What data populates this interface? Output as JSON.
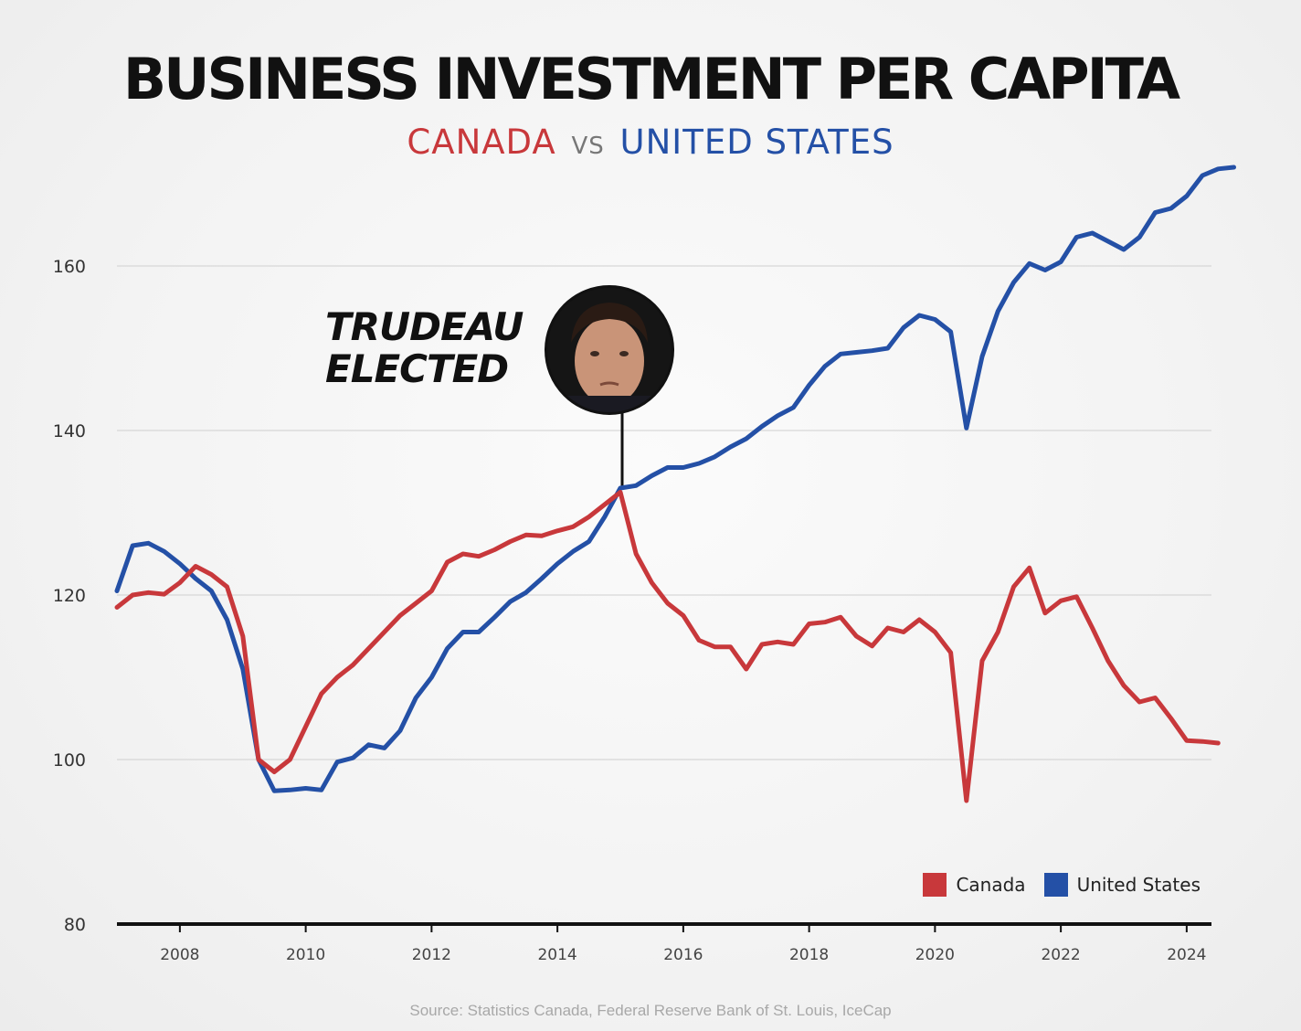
{
  "header": {
    "title": "BUSINESS INVESTMENT PER CAPITA",
    "subtitle_canada": "CANADA",
    "subtitle_vs": "VS",
    "subtitle_us": "UNITED STATES"
  },
  "annotation": {
    "line1": "TRUDEAU",
    "line2": "ELECTED",
    "x_year": 2015.0
  },
  "source": "Source: Statistics Canada, Federal Reserve Bank of St. Louis, IceCap",
  "colors": {
    "canada": "#c8383b",
    "united_states": "#2450a6"
  },
  "chart_data": {
    "type": "line",
    "title": "BUSINESS INVESTMENT PER CAPITA",
    "xlabel": "",
    "ylabel": "",
    "xlim": [
      2007.0,
      2024.9
    ],
    "ylim": [
      80,
      170
    ],
    "yticks": [
      80,
      100,
      120,
      140,
      160
    ],
    "xticks": [
      2008,
      2010,
      2012,
      2014,
      2016,
      2018,
      2020,
      2022,
      2024
    ],
    "grid": true,
    "legend_position": "bottom-right",
    "series": [
      {
        "name": "Canada",
        "color": "#c8383b",
        "points": [
          [
            2007.0,
            118.5
          ],
          [
            2007.25,
            120.0
          ],
          [
            2007.5,
            120.3
          ],
          [
            2007.75,
            120.1
          ],
          [
            2008.0,
            121.5
          ],
          [
            2008.25,
            123.5
          ],
          [
            2008.5,
            122.5
          ],
          [
            2008.75,
            121.0
          ],
          [
            2009.0,
            115.0
          ],
          [
            2009.25,
            100.0
          ],
          [
            2009.5,
            98.5
          ],
          [
            2009.75,
            100.0
          ],
          [
            2010.0,
            104.0
          ],
          [
            2010.25,
            108.0
          ],
          [
            2010.5,
            110.0
          ],
          [
            2010.75,
            111.5
          ],
          [
            2011.0,
            113.5
          ],
          [
            2011.25,
            115.5
          ],
          [
            2011.5,
            117.5
          ],
          [
            2011.75,
            119.0
          ],
          [
            2012.0,
            120.5
          ],
          [
            2012.25,
            124.0
          ],
          [
            2012.5,
            125.0
          ],
          [
            2012.75,
            124.7
          ],
          [
            2013.0,
            125.5
          ],
          [
            2013.25,
            126.5
          ],
          [
            2013.5,
            127.3
          ],
          [
            2013.75,
            127.2
          ],
          [
            2014.0,
            127.8
          ],
          [
            2014.25,
            128.3
          ],
          [
            2014.5,
            129.5
          ],
          [
            2014.75,
            131.0
          ],
          [
            2015.0,
            132.5
          ],
          [
            2015.25,
            125.0
          ],
          [
            2015.5,
            121.5
          ],
          [
            2015.75,
            119.0
          ],
          [
            2016.0,
            117.5
          ],
          [
            2016.25,
            114.5
          ],
          [
            2016.5,
            113.7
          ],
          [
            2016.75,
            113.7
          ],
          [
            2017.0,
            111.0
          ],
          [
            2017.25,
            114.0
          ],
          [
            2017.5,
            114.3
          ],
          [
            2017.75,
            114.0
          ],
          [
            2018.0,
            116.5
          ],
          [
            2018.25,
            116.7
          ],
          [
            2018.5,
            117.3
          ],
          [
            2018.75,
            115.0
          ],
          [
            2019.0,
            113.8
          ],
          [
            2019.25,
            116.0
          ],
          [
            2019.5,
            115.5
          ],
          [
            2019.75,
            117.0
          ],
          [
            2020.0,
            115.5
          ],
          [
            2020.25,
            113.0
          ],
          [
            2020.5,
            95.0
          ],
          [
            2020.75,
            112.0
          ],
          [
            2021.0,
            115.5
          ],
          [
            2021.25,
            121.0
          ],
          [
            2021.5,
            123.3
          ],
          [
            2021.75,
            117.8
          ],
          [
            2022.0,
            119.3
          ],
          [
            2022.25,
            119.8
          ],
          [
            2022.5,
            116.0
          ],
          [
            2022.75,
            112.0
          ],
          [
            2023.0,
            109.0
          ],
          [
            2023.25,
            107.0
          ],
          [
            2023.5,
            107.5
          ],
          [
            2023.75,
            105.0
          ],
          [
            2024.0,
            102.3
          ],
          [
            2024.25,
            102.2
          ],
          [
            2024.5,
            102.0
          ]
        ]
      },
      {
        "name": "United States",
        "color": "#2450a6",
        "points": [
          [
            2007.0,
            120.5
          ],
          [
            2007.25,
            126.0
          ],
          [
            2007.5,
            126.3
          ],
          [
            2007.75,
            125.3
          ],
          [
            2008.0,
            123.8
          ],
          [
            2008.25,
            122.0
          ],
          [
            2008.5,
            120.5
          ],
          [
            2008.75,
            117.0
          ],
          [
            2009.0,
            111.0
          ],
          [
            2009.25,
            100.0
          ],
          [
            2009.5,
            96.2
          ],
          [
            2009.75,
            96.3
          ],
          [
            2010.0,
            96.5
          ],
          [
            2010.25,
            96.3
          ],
          [
            2010.5,
            99.7
          ],
          [
            2010.75,
            100.2
          ],
          [
            2011.0,
            101.8
          ],
          [
            2011.25,
            101.4
          ],
          [
            2011.5,
            103.5
          ],
          [
            2011.75,
            107.5
          ],
          [
            2012.0,
            110.0
          ],
          [
            2012.25,
            113.5
          ],
          [
            2012.5,
            115.5
          ],
          [
            2012.75,
            115.5
          ],
          [
            2013.0,
            117.3
          ],
          [
            2013.25,
            119.2
          ],
          [
            2013.5,
            120.3
          ],
          [
            2013.75,
            122.0
          ],
          [
            2014.0,
            123.8
          ],
          [
            2014.25,
            125.3
          ],
          [
            2014.5,
            126.5
          ],
          [
            2014.75,
            129.5
          ],
          [
            2015.0,
            133.0
          ],
          [
            2015.25,
            133.3
          ],
          [
            2015.5,
            134.5
          ],
          [
            2015.75,
            135.5
          ],
          [
            2016.0,
            135.5
          ],
          [
            2016.25,
            136.0
          ],
          [
            2016.5,
            136.8
          ],
          [
            2016.75,
            138.0
          ],
          [
            2017.0,
            139.0
          ],
          [
            2017.25,
            140.5
          ],
          [
            2017.5,
            141.8
          ],
          [
            2017.75,
            142.8
          ],
          [
            2018.0,
            145.5
          ],
          [
            2018.25,
            147.8
          ],
          [
            2018.5,
            149.3
          ],
          [
            2018.75,
            149.5
          ],
          [
            2019.0,
            149.7
          ],
          [
            2019.25,
            150.0
          ],
          [
            2019.5,
            152.5
          ],
          [
            2019.75,
            154.0
          ],
          [
            2020.0,
            153.5
          ],
          [
            2020.25,
            152.0
          ],
          [
            2020.5,
            140.3
          ],
          [
            2020.75,
            149.0
          ],
          [
            2021.0,
            154.5
          ],
          [
            2021.25,
            158.0
          ],
          [
            2021.5,
            160.3
          ],
          [
            2021.75,
            159.5
          ],
          [
            2022.0,
            160.5
          ],
          [
            2022.25,
            163.5
          ],
          [
            2022.5,
            164.0
          ],
          [
            2022.75,
            163.0
          ],
          [
            2023.0,
            162.0
          ],
          [
            2023.25,
            163.5
          ],
          [
            2023.5,
            166.5
          ],
          [
            2023.75,
            167.0
          ],
          [
            2024.0,
            168.5
          ],
          [
            2024.25,
            171.0
          ],
          [
            2024.5,
            171.8
          ],
          [
            2024.75,
            172.0
          ]
        ]
      }
    ]
  }
}
